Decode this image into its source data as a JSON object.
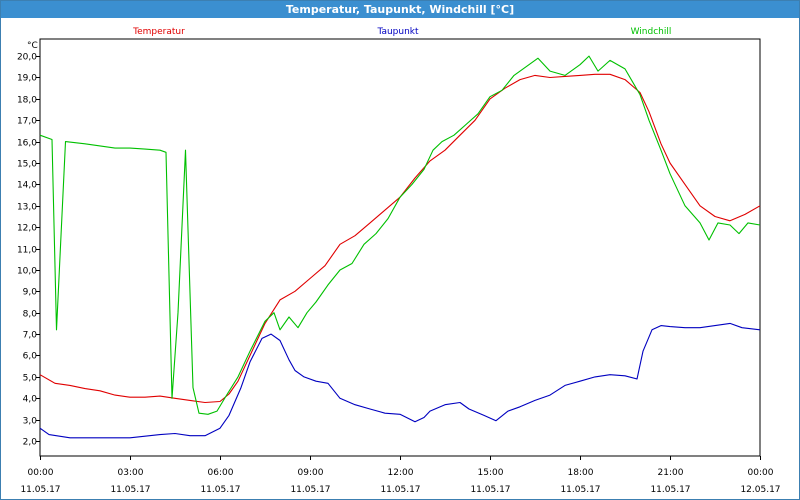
{
  "window": {
    "title": "Temperatur, Taupunkt, Windchill [°C]"
  },
  "chart_data": {
    "type": "line",
    "title": "Temperatur, Taupunkt, Windchill [°C]",
    "ylabel": "°C",
    "ylim": [
      1.3,
      20.8
    ],
    "xlim": [
      0,
      24
    ],
    "grid": true,
    "legend": "top, inline",
    "y_ticks": [
      "2,0",
      "3,0",
      "4,0",
      "5,0",
      "6,0",
      "7,0",
      "8,0",
      "9,0",
      "10,0",
      "11,0",
      "12,0",
      "13,0",
      "14,0",
      "15,0",
      "16,0",
      "17,0",
      "18,0",
      "19,0",
      "20,0"
    ],
    "x_ticks": [
      {
        "time": "00:00",
        "date": "11.05.17"
      },
      {
        "time": "03:00",
        "date": "11.05.17"
      },
      {
        "time": "06:00",
        "date": "11.05.17"
      },
      {
        "time": "09:00",
        "date": "11.05.17"
      },
      {
        "time": "12:00",
        "date": "11.05.17"
      },
      {
        "time": "15:00",
        "date": "11.05.17"
      },
      {
        "time": "18:00",
        "date": "11.05.17"
      },
      {
        "time": "21:00",
        "date": "11.05.17"
      },
      {
        "time": "00:00",
        "date": "12.05.17"
      }
    ],
    "series": [
      {
        "name": "Temperatur",
        "color": "#e00000",
        "points": [
          [
            0,
            5.1
          ],
          [
            0.5,
            4.7
          ],
          [
            1.0,
            4.6
          ],
          [
            1.5,
            4.45
          ],
          [
            2.0,
            4.35
          ],
          [
            2.5,
            4.15
          ],
          [
            3.0,
            4.05
          ],
          [
            3.5,
            4.05
          ],
          [
            4.0,
            4.1
          ],
          [
            4.5,
            4.0
          ],
          [
            5.0,
            3.9
          ],
          [
            5.5,
            3.8
          ],
          [
            6.0,
            3.85
          ],
          [
            6.3,
            4.2
          ],
          [
            6.6,
            4.8
          ],
          [
            7.0,
            6.0
          ],
          [
            7.5,
            7.5
          ],
          [
            8.0,
            8.6
          ],
          [
            8.5,
            9.0
          ],
          [
            9.0,
            9.6
          ],
          [
            9.5,
            10.2
          ],
          [
            10.0,
            11.2
          ],
          [
            10.5,
            11.6
          ],
          [
            11.0,
            12.2
          ],
          [
            11.5,
            12.8
          ],
          [
            12.0,
            13.4
          ],
          [
            12.5,
            14.3
          ],
          [
            13.0,
            15.1
          ],
          [
            13.5,
            15.6
          ],
          [
            14.0,
            16.3
          ],
          [
            14.5,
            17.0
          ],
          [
            15.0,
            18.0
          ],
          [
            15.5,
            18.5
          ],
          [
            16.0,
            18.9
          ],
          [
            16.5,
            19.1
          ],
          [
            17.0,
            19.0
          ],
          [
            17.5,
            19.05
          ],
          [
            18.0,
            19.1
          ],
          [
            18.5,
            19.15
          ],
          [
            19.0,
            19.15
          ],
          [
            19.5,
            18.9
          ],
          [
            20.0,
            18.3
          ],
          [
            20.3,
            17.4
          ],
          [
            20.7,
            15.9
          ],
          [
            21.0,
            15.0
          ],
          [
            21.5,
            14.0
          ],
          [
            22.0,
            13.0
          ],
          [
            22.5,
            12.5
          ],
          [
            23.0,
            12.3
          ],
          [
            23.5,
            12.6
          ],
          [
            24.0,
            13.0
          ]
        ]
      },
      {
        "name": "Taupunkt",
        "color": "#0000c0",
        "points": [
          [
            0,
            2.6
          ],
          [
            0.3,
            2.3
          ],
          [
            1.0,
            2.15
          ],
          [
            2.0,
            2.15
          ],
          [
            3.0,
            2.15
          ],
          [
            4.0,
            2.3
          ],
          [
            4.5,
            2.35
          ],
          [
            5.0,
            2.25
          ],
          [
            5.5,
            2.25
          ],
          [
            6.0,
            2.6
          ],
          [
            6.3,
            3.2
          ],
          [
            6.7,
            4.5
          ],
          [
            7.0,
            5.7
          ],
          [
            7.4,
            6.8
          ],
          [
            7.7,
            7.0
          ],
          [
            8.0,
            6.7
          ],
          [
            8.3,
            5.8
          ],
          [
            8.5,
            5.3
          ],
          [
            8.8,
            5.0
          ],
          [
            9.2,
            4.8
          ],
          [
            9.6,
            4.7
          ],
          [
            10.0,
            4.0
          ],
          [
            10.5,
            3.7
          ],
          [
            11.0,
            3.5
          ],
          [
            11.5,
            3.3
          ],
          [
            12.0,
            3.25
          ],
          [
            12.5,
            2.9
          ],
          [
            12.8,
            3.1
          ],
          [
            13.0,
            3.4
          ],
          [
            13.5,
            3.7
          ],
          [
            14.0,
            3.8
          ],
          [
            14.3,
            3.5
          ],
          [
            14.8,
            3.2
          ],
          [
            15.2,
            2.95
          ],
          [
            15.6,
            3.4
          ],
          [
            16.0,
            3.6
          ],
          [
            16.5,
            3.9
          ],
          [
            17.0,
            4.15
          ],
          [
            17.5,
            4.6
          ],
          [
            18.0,
            4.8
          ],
          [
            18.5,
            5.0
          ],
          [
            19.0,
            5.1
          ],
          [
            19.5,
            5.05
          ],
          [
            19.9,
            4.9
          ],
          [
            20.1,
            6.2
          ],
          [
            20.4,
            7.2
          ],
          [
            20.7,
            7.4
          ],
          [
            21.0,
            7.35
          ],
          [
            21.5,
            7.3
          ],
          [
            22.0,
            7.3
          ],
          [
            22.5,
            7.4
          ],
          [
            23.0,
            7.5
          ],
          [
            23.4,
            7.3
          ],
          [
            24.0,
            7.2
          ]
        ]
      },
      {
        "name": "Windchill",
        "color": "#00c000",
        "points": [
          [
            0,
            16.3
          ],
          [
            0.4,
            16.1
          ],
          [
            0.55,
            7.2
          ],
          [
            0.85,
            16.0
          ],
          [
            1.5,
            15.9
          ],
          [
            2.0,
            15.8
          ],
          [
            2.5,
            15.7
          ],
          [
            3.0,
            15.7
          ],
          [
            3.5,
            15.65
          ],
          [
            4.0,
            15.6
          ],
          [
            4.2,
            15.5
          ],
          [
            4.4,
            4.0
          ],
          [
            4.6,
            8.0
          ],
          [
            4.85,
            15.6
          ],
          [
            5.1,
            4.5
          ],
          [
            5.3,
            3.3
          ],
          [
            5.6,
            3.25
          ],
          [
            5.9,
            3.4
          ],
          [
            6.2,
            4.1
          ],
          [
            6.6,
            5.0
          ],
          [
            7.0,
            6.2
          ],
          [
            7.5,
            7.6
          ],
          [
            7.8,
            8.0
          ],
          [
            8.0,
            7.2
          ],
          [
            8.3,
            7.8
          ],
          [
            8.6,
            7.3
          ],
          [
            8.9,
            8.0
          ],
          [
            9.2,
            8.5
          ],
          [
            9.6,
            9.3
          ],
          [
            10.0,
            10.0
          ],
          [
            10.4,
            10.3
          ],
          [
            10.8,
            11.2
          ],
          [
            11.2,
            11.7
          ],
          [
            11.6,
            12.4
          ],
          [
            12.0,
            13.4
          ],
          [
            12.4,
            14.0
          ],
          [
            12.8,
            14.7
          ],
          [
            13.1,
            15.6
          ],
          [
            13.4,
            16.0
          ],
          [
            13.8,
            16.3
          ],
          [
            14.2,
            16.8
          ],
          [
            14.6,
            17.3
          ],
          [
            15.0,
            18.1
          ],
          [
            15.4,
            18.4
          ],
          [
            15.8,
            19.1
          ],
          [
            16.2,
            19.5
          ],
          [
            16.6,
            19.9
          ],
          [
            17.0,
            19.3
          ],
          [
            17.5,
            19.1
          ],
          [
            18.0,
            19.6
          ],
          [
            18.3,
            20.0
          ],
          [
            18.6,
            19.3
          ],
          [
            19.0,
            19.8
          ],
          [
            19.5,
            19.4
          ],
          [
            20.0,
            18.2
          ],
          [
            20.3,
            17.0
          ],
          [
            20.7,
            15.6
          ],
          [
            21.0,
            14.5
          ],
          [
            21.5,
            13.0
          ],
          [
            22.0,
            12.2
          ],
          [
            22.3,
            11.4
          ],
          [
            22.6,
            12.2
          ],
          [
            23.0,
            12.1
          ],
          [
            23.3,
            11.7
          ],
          [
            23.6,
            12.2
          ],
          [
            24.0,
            12.1
          ]
        ]
      }
    ]
  }
}
